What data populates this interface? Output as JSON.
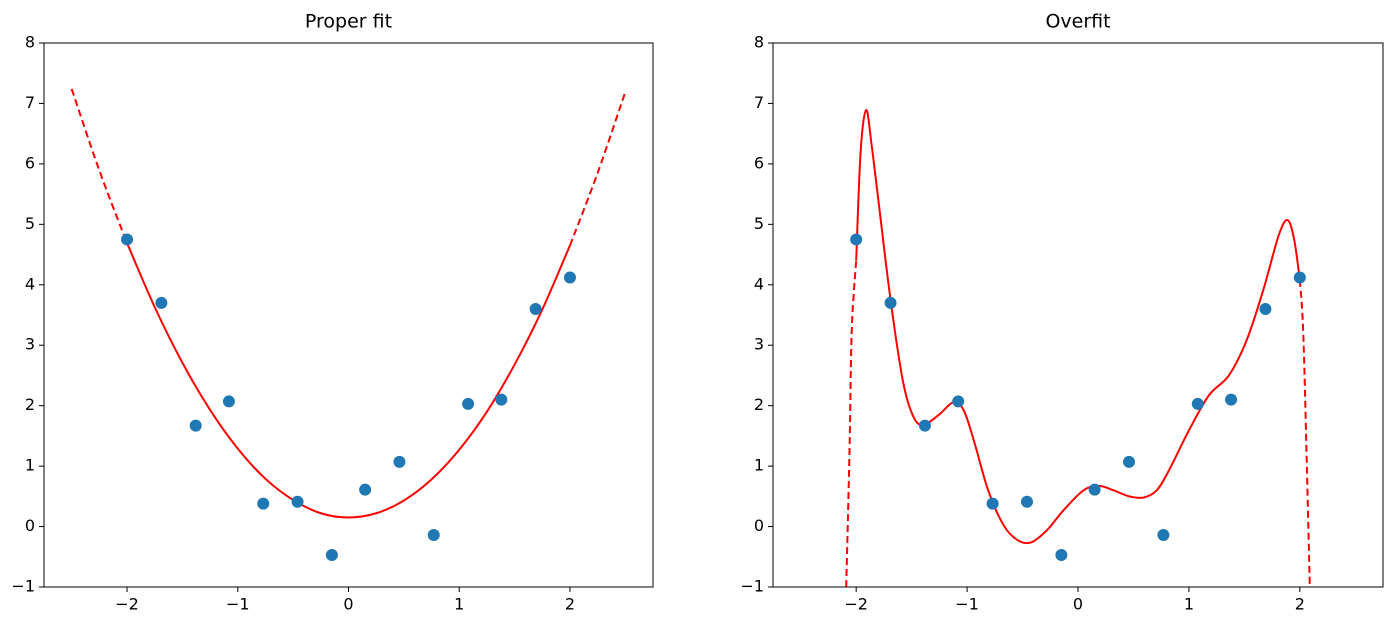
{
  "chart_data": [
    {
      "type": "scatter",
      "title": "Proper fit",
      "x": [
        -2,
        -1.69,
        -1.38,
        -1.08,
        -0.77,
        -0.46,
        -0.15,
        0.15,
        0.46,
        0.77,
        1.08,
        1.38,
        1.69,
        2
      ],
      "values": [
        4.75,
        3.7,
        1.67,
        2.07,
        0.38,
        0.41,
        -0.47,
        0.61,
        1.07,
        -0.14,
        2.03,
        2.1,
        3.6,
        4.12
      ],
      "color": "#1f77b4",
      "lines": [
        {
          "color": "#ff0000",
          "dashed": true,
          "x": [
            -2.5,
            -2.25,
            -2
          ],
          "values": [
            7.24,
            5.89,
            4.69
          ]
        },
        {
          "color": "#ff0000",
          "dashed": false,
          "x": [
            -2,
            -1.75,
            -1.5,
            -1.25,
            -1,
            -0.75,
            -0.5,
            -0.25,
            0,
            0.25,
            0.5,
            0.75,
            1,
            1.25,
            1.5,
            1.75,
            2
          ],
          "values": [
            4.69,
            3.63,
            2.71,
            1.93,
            1.29,
            0.79,
            0.44,
            0.22,
            0.15,
            0.22,
            0.43,
            0.78,
            1.27,
            1.9,
            2.68,
            3.59,
            4.65
          ]
        },
        {
          "color": "#ff0000",
          "dashed": true,
          "x": [
            2,
            2.25,
            2.5
          ],
          "values": [
            4.65,
            5.85,
            7.19
          ]
        }
      ],
      "xlim": [
        -2.75,
        2.75
      ],
      "ylim": [
        -1,
        8
      ],
      "xticks": [
        {
          "value": -2,
          "label": "−2"
        },
        {
          "value": -1,
          "label": "−1"
        },
        0,
        1,
        2
      ],
      "yticks": [
        {
          "value": -1,
          "label": "−1"
        },
        0,
        1,
        2,
        3,
        4,
        5,
        6,
        7,
        8
      ]
    },
    {
      "type": "scatter",
      "title": "Overfit",
      "x": [
        -2,
        -1.69,
        -1.38,
        -1.08,
        -0.77,
        -0.46,
        -0.15,
        0.15,
        0.46,
        0.77,
        1.08,
        1.38,
        1.69,
        2
      ],
      "values": [
        4.75,
        3.7,
        1.67,
        2.07,
        0.38,
        0.41,
        -0.47,
        0.61,
        1.07,
        -0.14,
        2.03,
        2.1,
        3.6,
        4.12
      ],
      "color": "#1f77b4",
      "lines": [
        {
          "color": "#ff0000",
          "dashed": true,
          "x": [
            -2.09,
            -2.06,
            -2.04,
            -2
          ],
          "values": [
            -1,
            1.26,
            3.25,
            4.4
          ]
        },
        {
          "color": "#ff0000",
          "dashed": false,
          "x": [
            -2,
            -1.96,
            -1.91,
            -1.86,
            -1.8,
            -1.69,
            -1.58,
            -1.49,
            -1.4,
            -1.26,
            -1.12,
            -1.03,
            -0.94,
            -0.81,
            -0.67,
            -0.54,
            -0.42,
            -0.28,
            -0.13,
            0.05,
            0.19,
            0.32,
            0.46,
            0.59,
            0.71,
            0.82,
            1,
            1.18,
            1.36,
            1.52,
            1.67,
            1.81,
            1.89,
            1.95,
            2
          ],
          "values": [
            4.4,
            6.2,
            6.89,
            6.3,
            5.4,
            3.75,
            2.42,
            1.84,
            1.68,
            1.84,
            2.06,
            1.92,
            1.43,
            0.6,
            0.02,
            -0.23,
            -0.26,
            -0.06,
            0.27,
            0.6,
            0.67,
            0.6,
            0.5,
            0.48,
            0.6,
            0.93,
            1.59,
            2.17,
            2.5,
            3.08,
            3.91,
            4.82,
            5.07,
            4.74,
            4.08
          ]
        },
        {
          "color": "#ff0000",
          "dashed": true,
          "x": [
            2,
            2.03,
            2.06,
            2.09
          ],
          "values": [
            4.08,
            3.25,
            1.26,
            -1
          ]
        }
      ],
      "xlim": [
        -2.75,
        2.75
      ],
      "ylim": [
        -1,
        8
      ],
      "xticks": [
        {
          "value": -2,
          "label": "−2"
        },
        {
          "value": -1,
          "label": "−1"
        },
        0,
        1,
        2
      ],
      "yticks": [
        {
          "value": -1,
          "label": "−1"
        },
        0,
        1,
        2,
        3,
        4,
        5,
        6,
        7,
        8
      ]
    }
  ]
}
